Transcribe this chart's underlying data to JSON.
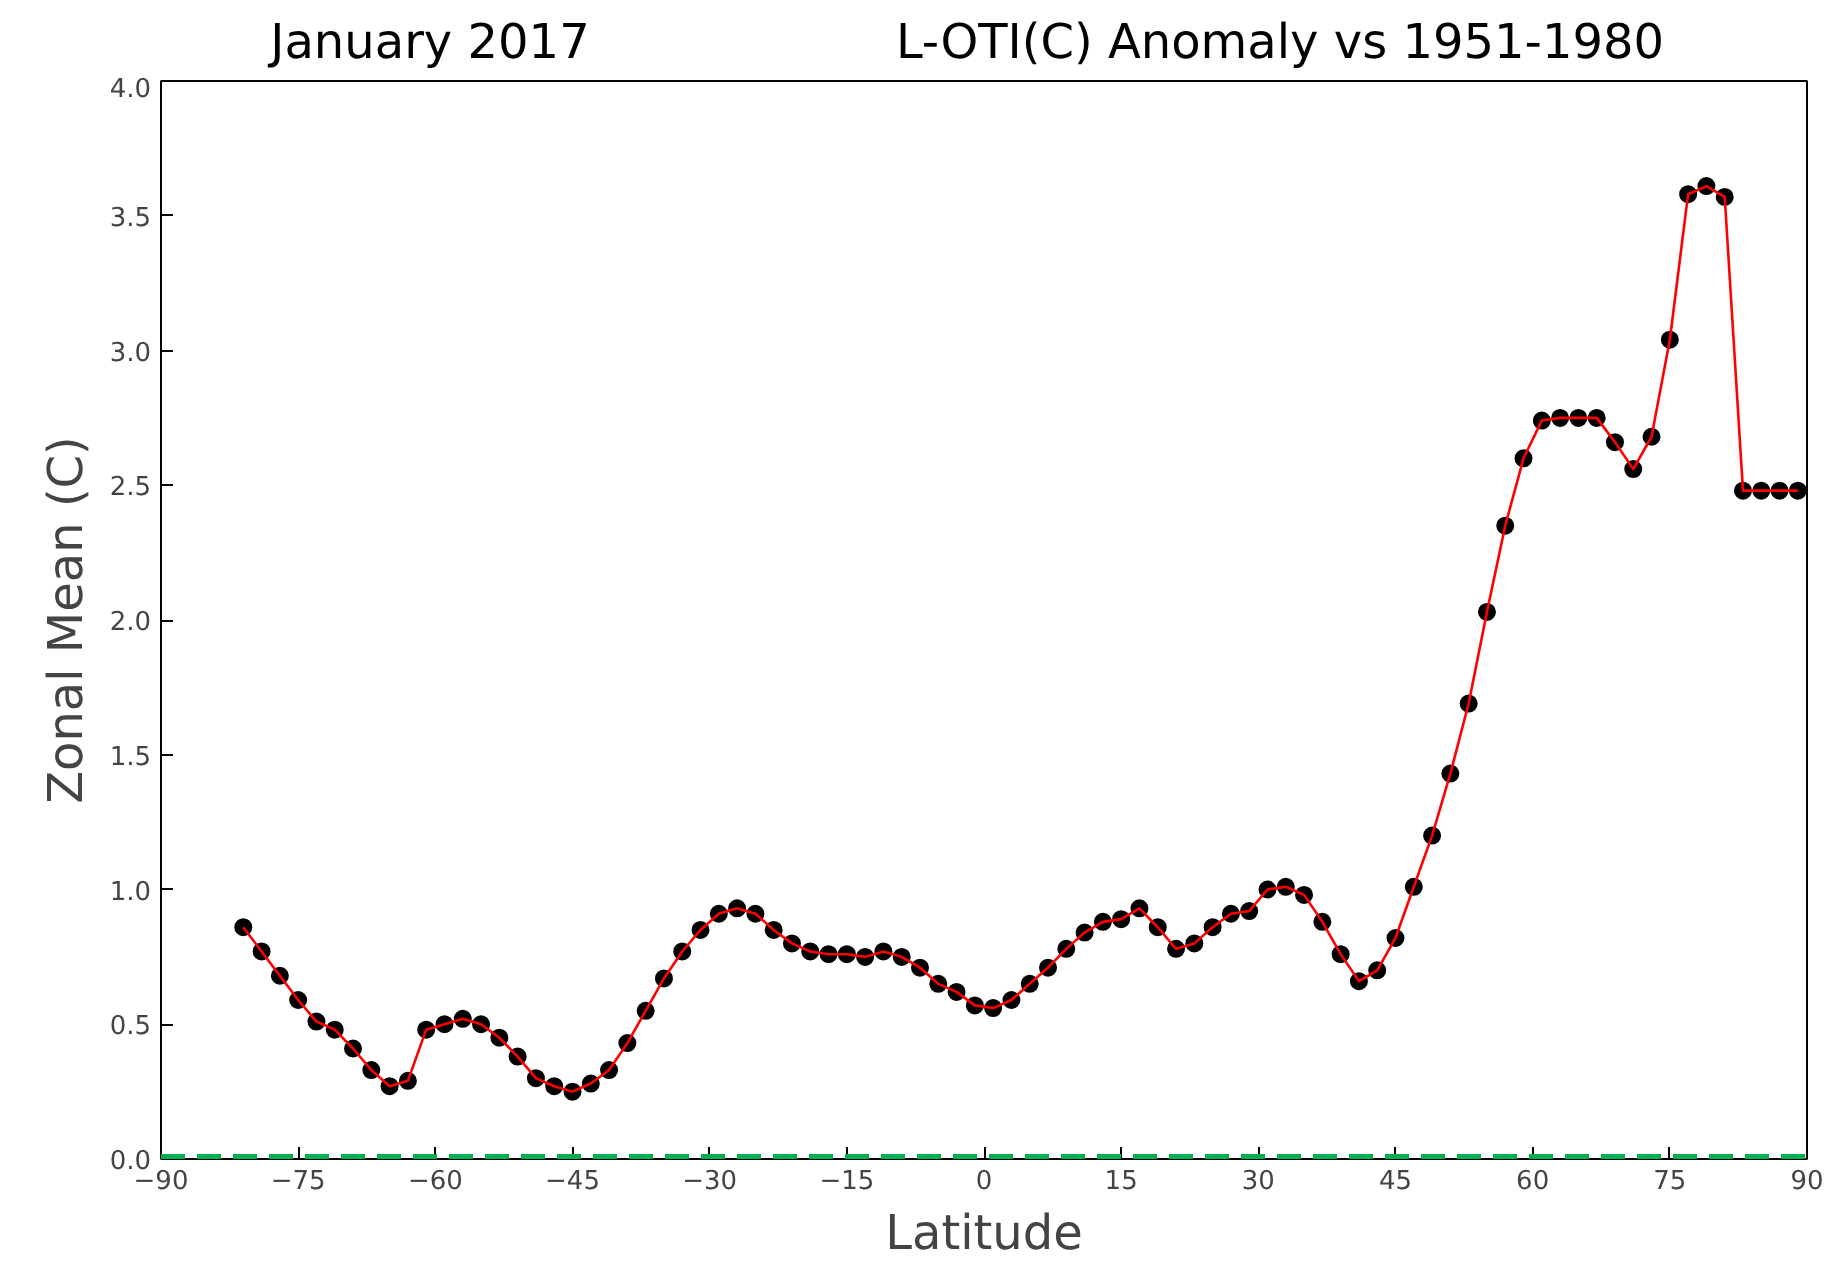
{
  "chart_data": {
    "type": "line",
    "title": "January 2017",
    "subtitle": "L-OTI(C) Anomaly vs 1951-1980",
    "xlabel": "Latitude",
    "ylabel": "Zonal Mean (C)",
    "x": [
      -81,
      -79,
      -77,
      -75,
      -73,
      -71,
      -69,
      -67,
      -65,
      -63,
      -61,
      -59,
      -57,
      -55,
      -53,
      -51,
      -49,
      -47,
      -45,
      -43,
      -41,
      -39,
      -37,
      -35,
      -33,
      -31,
      -29,
      -27,
      -25,
      -23,
      -21,
      -19,
      -17,
      -15,
      -13,
      -11,
      -9,
      -7,
      -5,
      -3,
      -1,
      1,
      3,
      5,
      7,
      9,
      11,
      13,
      15,
      17,
      19,
      21,
      23,
      25,
      27,
      29,
      31,
      33,
      35,
      37,
      39,
      41,
      43,
      45,
      47,
      49,
      51,
      53,
      55,
      57,
      59,
      61,
      63,
      65,
      67,
      69,
      71,
      73,
      75,
      77,
      79,
      81,
      83,
      85,
      87,
      89
    ],
    "series": [
      {
        "color": "#ff0000",
        "values": [
          0.86,
          0.77,
          0.68,
          0.59,
          0.51,
          0.48,
          0.41,
          0.33,
          0.27,
          0.29,
          0.48,
          0.5,
          0.52,
          0.5,
          0.45,
          0.38,
          0.3,
          0.27,
          0.25,
          0.28,
          0.33,
          0.43,
          0.55,
          0.67,
          0.77,
          0.85,
          0.91,
          0.93,
          0.91,
          0.85,
          0.8,
          0.77,
          0.76,
          0.76,
          0.75,
          0.77,
          0.75,
          0.71,
          0.65,
          0.62,
          0.57,
          0.56,
          0.59,
          0.65,
          0.71,
          0.78,
          0.84,
          0.88,
          0.89,
          0.93,
          0.86,
          0.78,
          0.8,
          0.86,
          0.91,
          0.92,
          1.0,
          1.01,
          0.98,
          0.88,
          0.76,
          0.66,
          0.7,
          0.82,
          1.01,
          1.2,
          1.43,
          1.69,
          2.03,
          2.35,
          2.6,
          2.74,
          2.75,
          2.75,
          2.75,
          2.66,
          2.56,
          2.68,
          3.04,
          3.58,
          3.61,
          3.57,
          2.48,
          2.48,
          2.48,
          2.48
        ]
      }
    ],
    "marker": "circle",
    "line_style": "solid",
    "grid": false,
    "xlim": [
      -90,
      90
    ],
    "xticks": [
      -90,
      -75,
      -60,
      -45,
      -30,
      -15,
      0,
      15,
      30,
      45,
      60,
      75,
      90
    ],
    "ylim": [
      0,
      4
    ],
    "yticks": [
      {
        "value": 0,
        "label": "0.0"
      },
      {
        "value": 0.5,
        "label": "0.5"
      },
      {
        "value": 1,
        "label": "1.0"
      },
      {
        "value": 1.5,
        "label": "1.5"
      },
      {
        "value": 2,
        "label": "2.0"
      },
      {
        "value": 2.5,
        "label": "2.5"
      },
      {
        "value": 3,
        "label": "3.0"
      },
      {
        "value": 3.5,
        "label": "3.5"
      },
      {
        "value": 4,
        "label": "4.0"
      }
    ],
    "ref_lines": [
      {
        "axis": "y",
        "value": 0,
        "color": "#00b050",
        "line_style": "dashed"
      }
    ]
  }
}
